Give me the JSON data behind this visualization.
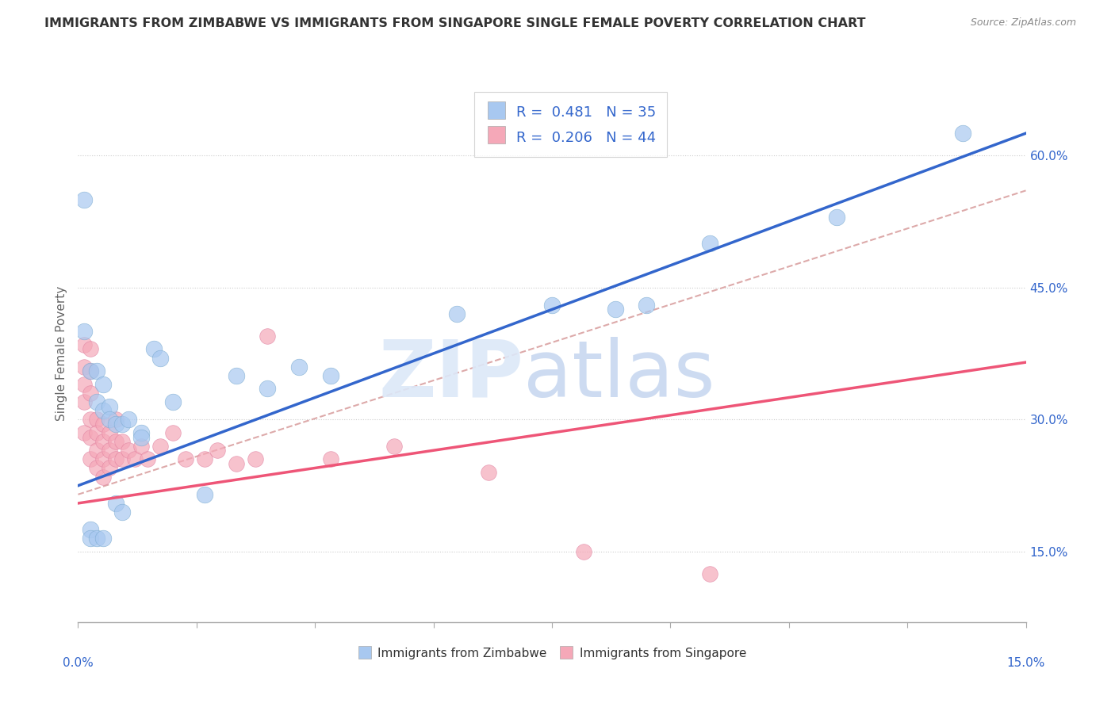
{
  "title": "IMMIGRANTS FROM ZIMBABWE VS IMMIGRANTS FROM SINGAPORE SINGLE FEMALE POVERTY CORRELATION CHART",
  "source": "Source: ZipAtlas.com",
  "ylabel_left": "Single Female Poverty",
  "yaxis_ticks": [
    "15.0%",
    "30.0%",
    "45.0%",
    "60.0%"
  ],
  "yaxis_tick_vals": [
    0.15,
    0.3,
    0.45,
    0.6
  ],
  "zimbabwe_color": "#a8c8f0",
  "zimbabwe_edge_color": "#7aaad0",
  "singapore_color": "#f5a8b8",
  "singapore_edge_color": "#e080a0",
  "zimbabwe_line_color": "#3366cc",
  "singapore_line_color": "#ee5577",
  "dashed_line_color": "#ddaaaa",
  "legend_text_color": "#3366cc",
  "background_color": "#ffffff",
  "xlim": [
    0.0,
    0.15
  ],
  "ylim": [
    0.07,
    0.68
  ],
  "zim_line_x0": 0.0,
  "zim_line_y0": 0.225,
  "zim_line_x1": 0.15,
  "zim_line_y1": 0.625,
  "sing_line_x0": 0.0,
  "sing_line_y0": 0.205,
  "sing_line_x1": 0.15,
  "sing_line_y1": 0.365,
  "dash_line_x0": 0.0,
  "dash_line_y0": 0.215,
  "dash_line_x1": 0.15,
  "dash_line_y1": 0.56,
  "zimbabwe_x": [
    0.001,
    0.001,
    0.002,
    0.003,
    0.003,
    0.004,
    0.004,
    0.005,
    0.005,
    0.006,
    0.007,
    0.008,
    0.01,
    0.01,
    0.012,
    0.013,
    0.015,
    0.02,
    0.025,
    0.03,
    0.035,
    0.04,
    0.06,
    0.075,
    0.085,
    0.09,
    0.1,
    0.12,
    0.14,
    0.002,
    0.002,
    0.003,
    0.004,
    0.006,
    0.007
  ],
  "zimbabwe_y": [
    0.55,
    0.4,
    0.355,
    0.355,
    0.32,
    0.34,
    0.31,
    0.315,
    0.3,
    0.295,
    0.295,
    0.3,
    0.285,
    0.28,
    0.38,
    0.37,
    0.32,
    0.215,
    0.35,
    0.335,
    0.36,
    0.35,
    0.42,
    0.43,
    0.425,
    0.43,
    0.5,
    0.53,
    0.625,
    0.175,
    0.165,
    0.165,
    0.165,
    0.205,
    0.195
  ],
  "singapore_x": [
    0.001,
    0.001,
    0.001,
    0.001,
    0.001,
    0.002,
    0.002,
    0.002,
    0.002,
    0.002,
    0.002,
    0.003,
    0.003,
    0.003,
    0.003,
    0.004,
    0.004,
    0.004,
    0.004,
    0.005,
    0.005,
    0.005,
    0.006,
    0.006,
    0.006,
    0.007,
    0.007,
    0.008,
    0.009,
    0.01,
    0.011,
    0.013,
    0.015,
    0.017,
    0.02,
    0.022,
    0.025,
    0.028,
    0.03,
    0.04,
    0.05,
    0.065,
    0.08,
    0.1
  ],
  "singapore_y": [
    0.385,
    0.36,
    0.34,
    0.32,
    0.285,
    0.38,
    0.355,
    0.33,
    0.3,
    0.28,
    0.255,
    0.3,
    0.285,
    0.265,
    0.245,
    0.295,
    0.275,
    0.255,
    0.235,
    0.285,
    0.265,
    0.245,
    0.3,
    0.275,
    0.255,
    0.275,
    0.255,
    0.265,
    0.255,
    0.27,
    0.255,
    0.27,
    0.285,
    0.255,
    0.255,
    0.265,
    0.25,
    0.255,
    0.395,
    0.255,
    0.27,
    0.24,
    0.15,
    0.125
  ]
}
